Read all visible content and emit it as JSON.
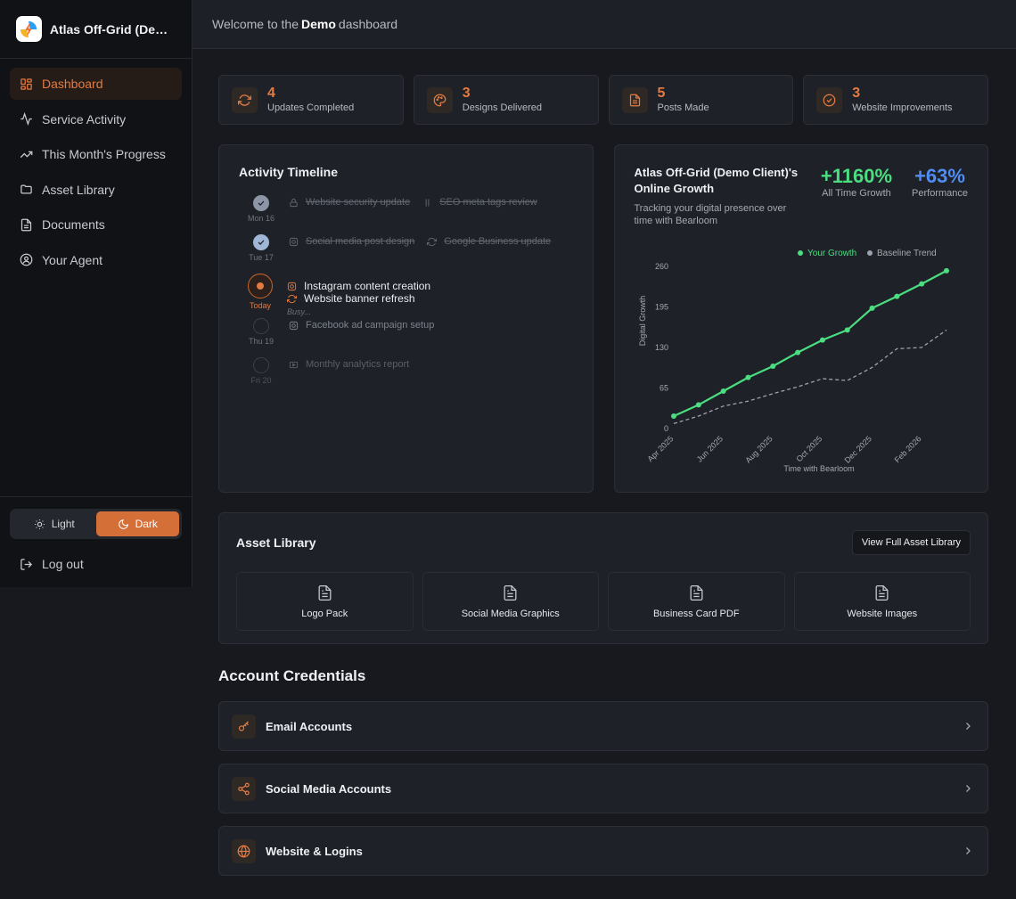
{
  "app": {
    "name": "Atlas Off-Grid (Demo Client)"
  },
  "sidebar": {
    "items": [
      {
        "label": "Dashboard",
        "icon": "dashboard-icon",
        "active": true
      },
      {
        "label": "Service Activity",
        "icon": "activity-icon"
      },
      {
        "label": "This Month's Progress",
        "icon": "trending-up-icon"
      },
      {
        "label": "Asset Library",
        "icon": "folder-icon"
      },
      {
        "label": "Documents",
        "icon": "document-icon"
      },
      {
        "label": "Your Agent",
        "icon": "user-circle-icon"
      }
    ],
    "theme": {
      "light": "Light",
      "dark": "Dark",
      "selected": "Dark"
    },
    "logout": "Log out"
  },
  "topbar": {
    "prefix": "Welcome to the",
    "name": "Demo",
    "suffix": "dashboard"
  },
  "stats": [
    {
      "value": "4",
      "label": "Updates Completed",
      "icon": "refresh-icon"
    },
    {
      "value": "3",
      "label": "Designs Delivered",
      "icon": "palette-icon"
    },
    {
      "value": "5",
      "label": "Posts Made",
      "icon": "document-icon"
    },
    {
      "value": "3",
      "label": "Website Improvements",
      "icon": "check-circle-icon"
    }
  ],
  "timeline": {
    "title": "Activity Timeline",
    "days": [
      {
        "label": "Mon 16",
        "state": "done",
        "tasks": [
          {
            "text": "Website security update",
            "icon": "lock-icon"
          },
          {
            "text": "SEO meta tags review",
            "icon": "tag-icon"
          }
        ]
      },
      {
        "label": "Tue 17",
        "state": "done",
        "tasks": [
          {
            "text": "Social media post design",
            "icon": "instagram-icon"
          },
          {
            "text": "Google Business update",
            "icon": "refresh-icon"
          }
        ]
      },
      {
        "label": "Today",
        "state": "today",
        "tasks": [
          {
            "text": "Instagram content creation",
            "icon": "instagram-icon"
          },
          {
            "text": "Website banner refresh",
            "icon": "refresh-icon"
          }
        ],
        "note": "Busy..."
      },
      {
        "label": "Thu 19",
        "state": "pending",
        "tasks": [
          {
            "text": "Facebook ad campaign setup",
            "icon": "instagram-icon"
          }
        ]
      },
      {
        "label": "Fri 20",
        "state": "pending",
        "tasks": [
          {
            "text": "Monthly analytics report",
            "icon": "video-icon"
          }
        ]
      }
    ]
  },
  "growth": {
    "title": "Atlas Off-Grid (Demo Client)'s Online Growth",
    "subtitle": "Tracking your digital presence over time with Bearloom",
    "metrics": [
      {
        "value": "+1160%",
        "label": "All Time Growth",
        "color": "#4ade80"
      },
      {
        "value": "+63%",
        "label": "Performance",
        "color": "#4f8df2"
      }
    ]
  },
  "chart_data": {
    "type": "line",
    "xlabel": "Time with Bearloom",
    "ylabel": "Digital Growth",
    "ylim": [
      0,
      260
    ],
    "yticks": [
      0,
      65,
      130,
      195,
      260
    ],
    "x_tick_labels": [
      "Apr 2025",
      "Jun 2025",
      "Aug 2025",
      "Oct 2025",
      "Dec 2025",
      "Feb 2026"
    ],
    "x_tick_index": [
      0,
      2,
      4,
      6,
      8,
      10
    ],
    "legend_position": "top-right",
    "series": [
      {
        "name": "Your Growth",
        "color": "#4ade80",
        "style": "solid",
        "markers": true,
        "values": [
          20,
          38,
          60,
          82,
          100,
          122,
          142,
          158,
          193,
          212,
          232,
          253
        ]
      },
      {
        "name": "Baseline Trend",
        "color": "#9ca3af",
        "style": "dashed",
        "markers": false,
        "values": [
          8,
          20,
          36,
          44,
          56,
          67,
          80,
          77,
          98,
          128,
          130,
          158
        ]
      }
    ]
  },
  "assets": {
    "title": "Asset Library",
    "button": "View Full Asset Library",
    "items": [
      "Logo Pack",
      "Social Media Graphics",
      "Business Card PDF",
      "Website Images"
    ]
  },
  "credentials": {
    "title": "Account Credentials",
    "items": [
      {
        "label": "Email Accounts",
        "icon": "key-icon"
      },
      {
        "label": "Social Media Accounts",
        "icon": "share-icon"
      },
      {
        "label": "Website & Logins",
        "icon": "globe-icon"
      }
    ]
  },
  "colors": {
    "accent": "#e37b43",
    "growth": "#4ade80",
    "performance": "#4f8df2"
  }
}
